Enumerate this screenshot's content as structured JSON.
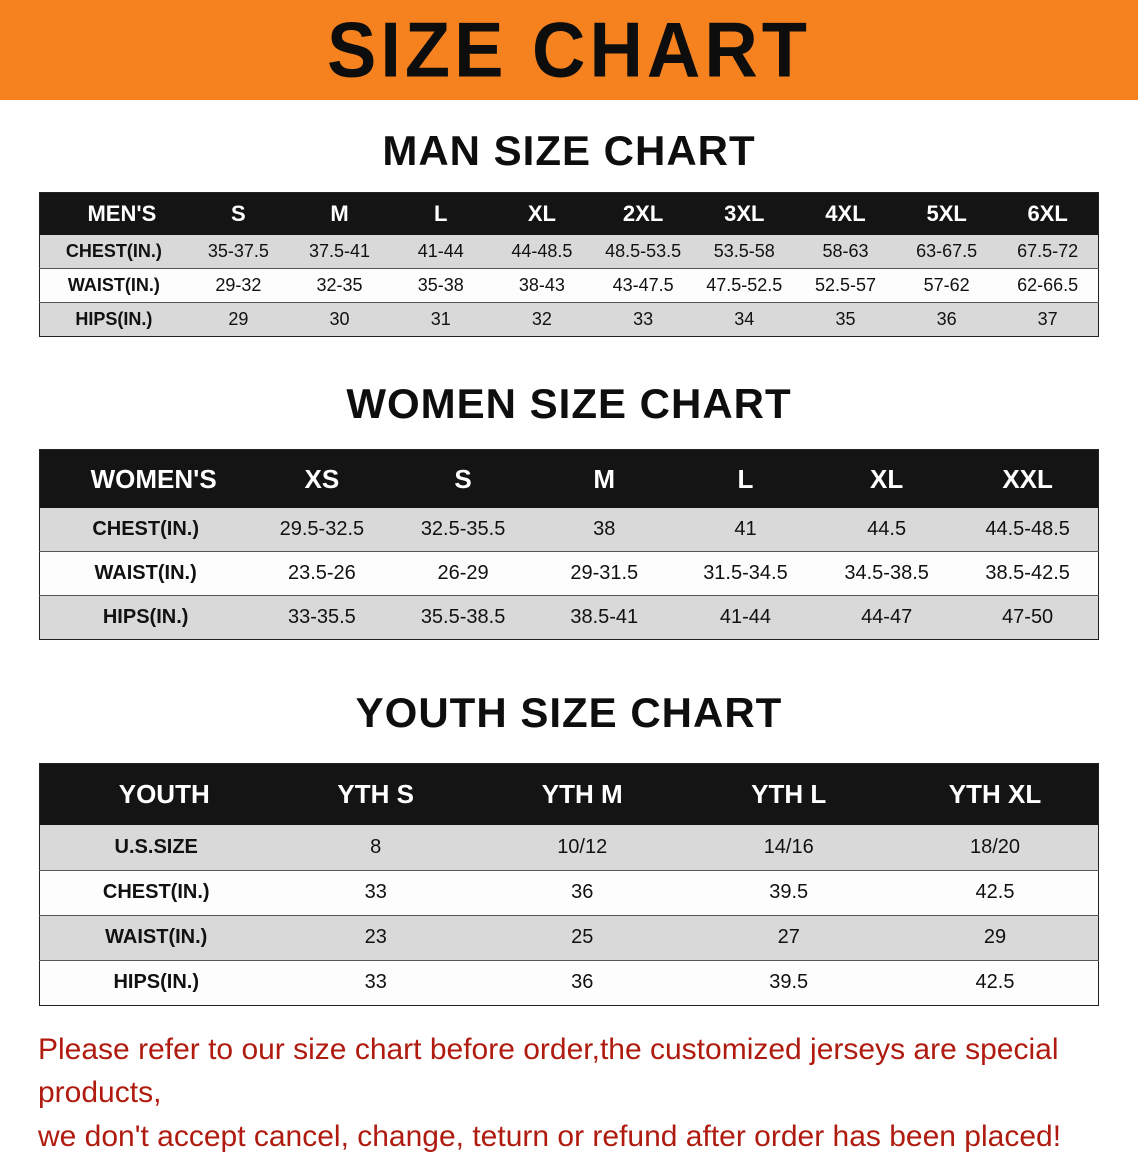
{
  "banner": {
    "title": "SIZE CHART"
  },
  "colors": {
    "banner_orange": "#f5821f",
    "table_header_black": "#141414",
    "row_gray": "#d9d9d9",
    "notice_red": "#b01b10"
  },
  "sections": [
    {
      "heading": "MAN SIZE CHART",
      "table": {
        "header": [
          "MEN'S",
          "S",
          "M",
          "L",
          "XL",
          "2XL",
          "3XL",
          "4XL",
          "5XL",
          "6XL"
        ],
        "rows": [
          {
            "label": "CHEST(IN.)",
            "values": [
              "35-37.5",
              "37.5-41",
              "41-44",
              "44-48.5",
              "48.5-53.5",
              "53.5-58",
              "58-63",
              "63-67.5",
              "67.5-72"
            ]
          },
          {
            "label": "WAIST(IN.)",
            "values": [
              "29-32",
              "32-35",
              "35-38",
              "38-43",
              "43-47.5",
              "47.5-52.5",
              "52.5-57",
              "57-62",
              "62-66.5"
            ]
          },
          {
            "label": "HIPS(IN.)",
            "values": [
              "29",
              "30",
              "31",
              "32",
              "33",
              "34",
              "35",
              "36",
              "37"
            ]
          }
        ]
      }
    },
    {
      "heading": "WOMEN SIZE CHART",
      "table": {
        "header": [
          "WOMEN'S",
          "XS",
          "S",
          "M",
          "L",
          "XL",
          "XXL"
        ],
        "rows": [
          {
            "label": "CHEST(IN.)",
            "values": [
              "29.5-32.5",
              "32.5-35.5",
              "38",
              "41",
              "44.5",
              "44.5-48.5"
            ]
          },
          {
            "label": "WAIST(IN.)",
            "values": [
              "23.5-26",
              "26-29",
              "29-31.5",
              "31.5-34.5",
              "34.5-38.5",
              "38.5-42.5"
            ]
          },
          {
            "label": "HIPS(IN.)",
            "values": [
              "33-35.5",
              "35.5-38.5",
              "38.5-41",
              "41-44",
              "44-47",
              "47-50"
            ]
          }
        ]
      }
    },
    {
      "heading": "YOUTH SIZE CHART",
      "table": {
        "header": [
          "YOUTH",
          "YTH S",
          "YTH M",
          "YTH L",
          "YTH XL"
        ],
        "rows": [
          {
            "label": "U.S.SIZE",
            "values": [
              "8",
              "10/12",
              "14/16",
              "18/20"
            ]
          },
          {
            "label": "CHEST(IN.)",
            "values": [
              "33",
              "36",
              "39.5",
              "42.5"
            ]
          },
          {
            "label": "WAIST(IN.)",
            "values": [
              "23",
              "25",
              "27",
              "29"
            ]
          },
          {
            "label": "HIPS(IN.)",
            "values": [
              "33",
              "36",
              "39.5",
              "42.5"
            ]
          }
        ]
      }
    }
  ],
  "footer": {
    "line1": "Please refer to our size chart before order,the customized jerseys are special products,",
    "line2": "we don't accept cancel, change, teturn or refund after order has been placed!"
  }
}
